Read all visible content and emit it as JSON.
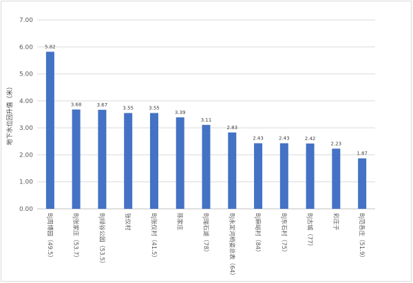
{
  "chart_data": {
    "type": "bar",
    "ylabel": "地下水位回升值（米）",
    "ylim": [
      0,
      7
    ],
    "yticks": [
      "0.00",
      "1.00",
      "2.00",
      "3.00",
      "4.00",
      "5.00",
      "6.00",
      "7.00"
    ],
    "grid": true,
    "legend": "none",
    "bar_color": "#4472C4",
    "categories": [
      "BJ周博园（49.5）",
      "BJ张家庄（53.7）",
      "BJ绿谷公园（53.5）",
      "张仪村",
      "BJ张仪村（41.5）",
      "陈家庄",
      "BJ瑞石湖（78）",
      "BJ永定河梢姿总表（64）",
      "BJ麻峪村（84）",
      "BJ东石村（75）",
      "BJ古城（77）",
      "彩庄子",
      "BJ范各庄（51.9）"
    ],
    "values": [
      5.82,
      3.68,
      3.67,
      3.55,
      3.55,
      3.39,
      3.11,
      2.83,
      2.43,
      2.43,
      2.42,
      2.23,
      1.87
    ],
    "data_labels": [
      "5.82",
      "3.68",
      "3.67",
      "3.55",
      "3.55",
      "3.39",
      "3.11",
      "2.83",
      "2.43",
      "2.43",
      "2.42",
      "2.23",
      "1.87"
    ]
  }
}
